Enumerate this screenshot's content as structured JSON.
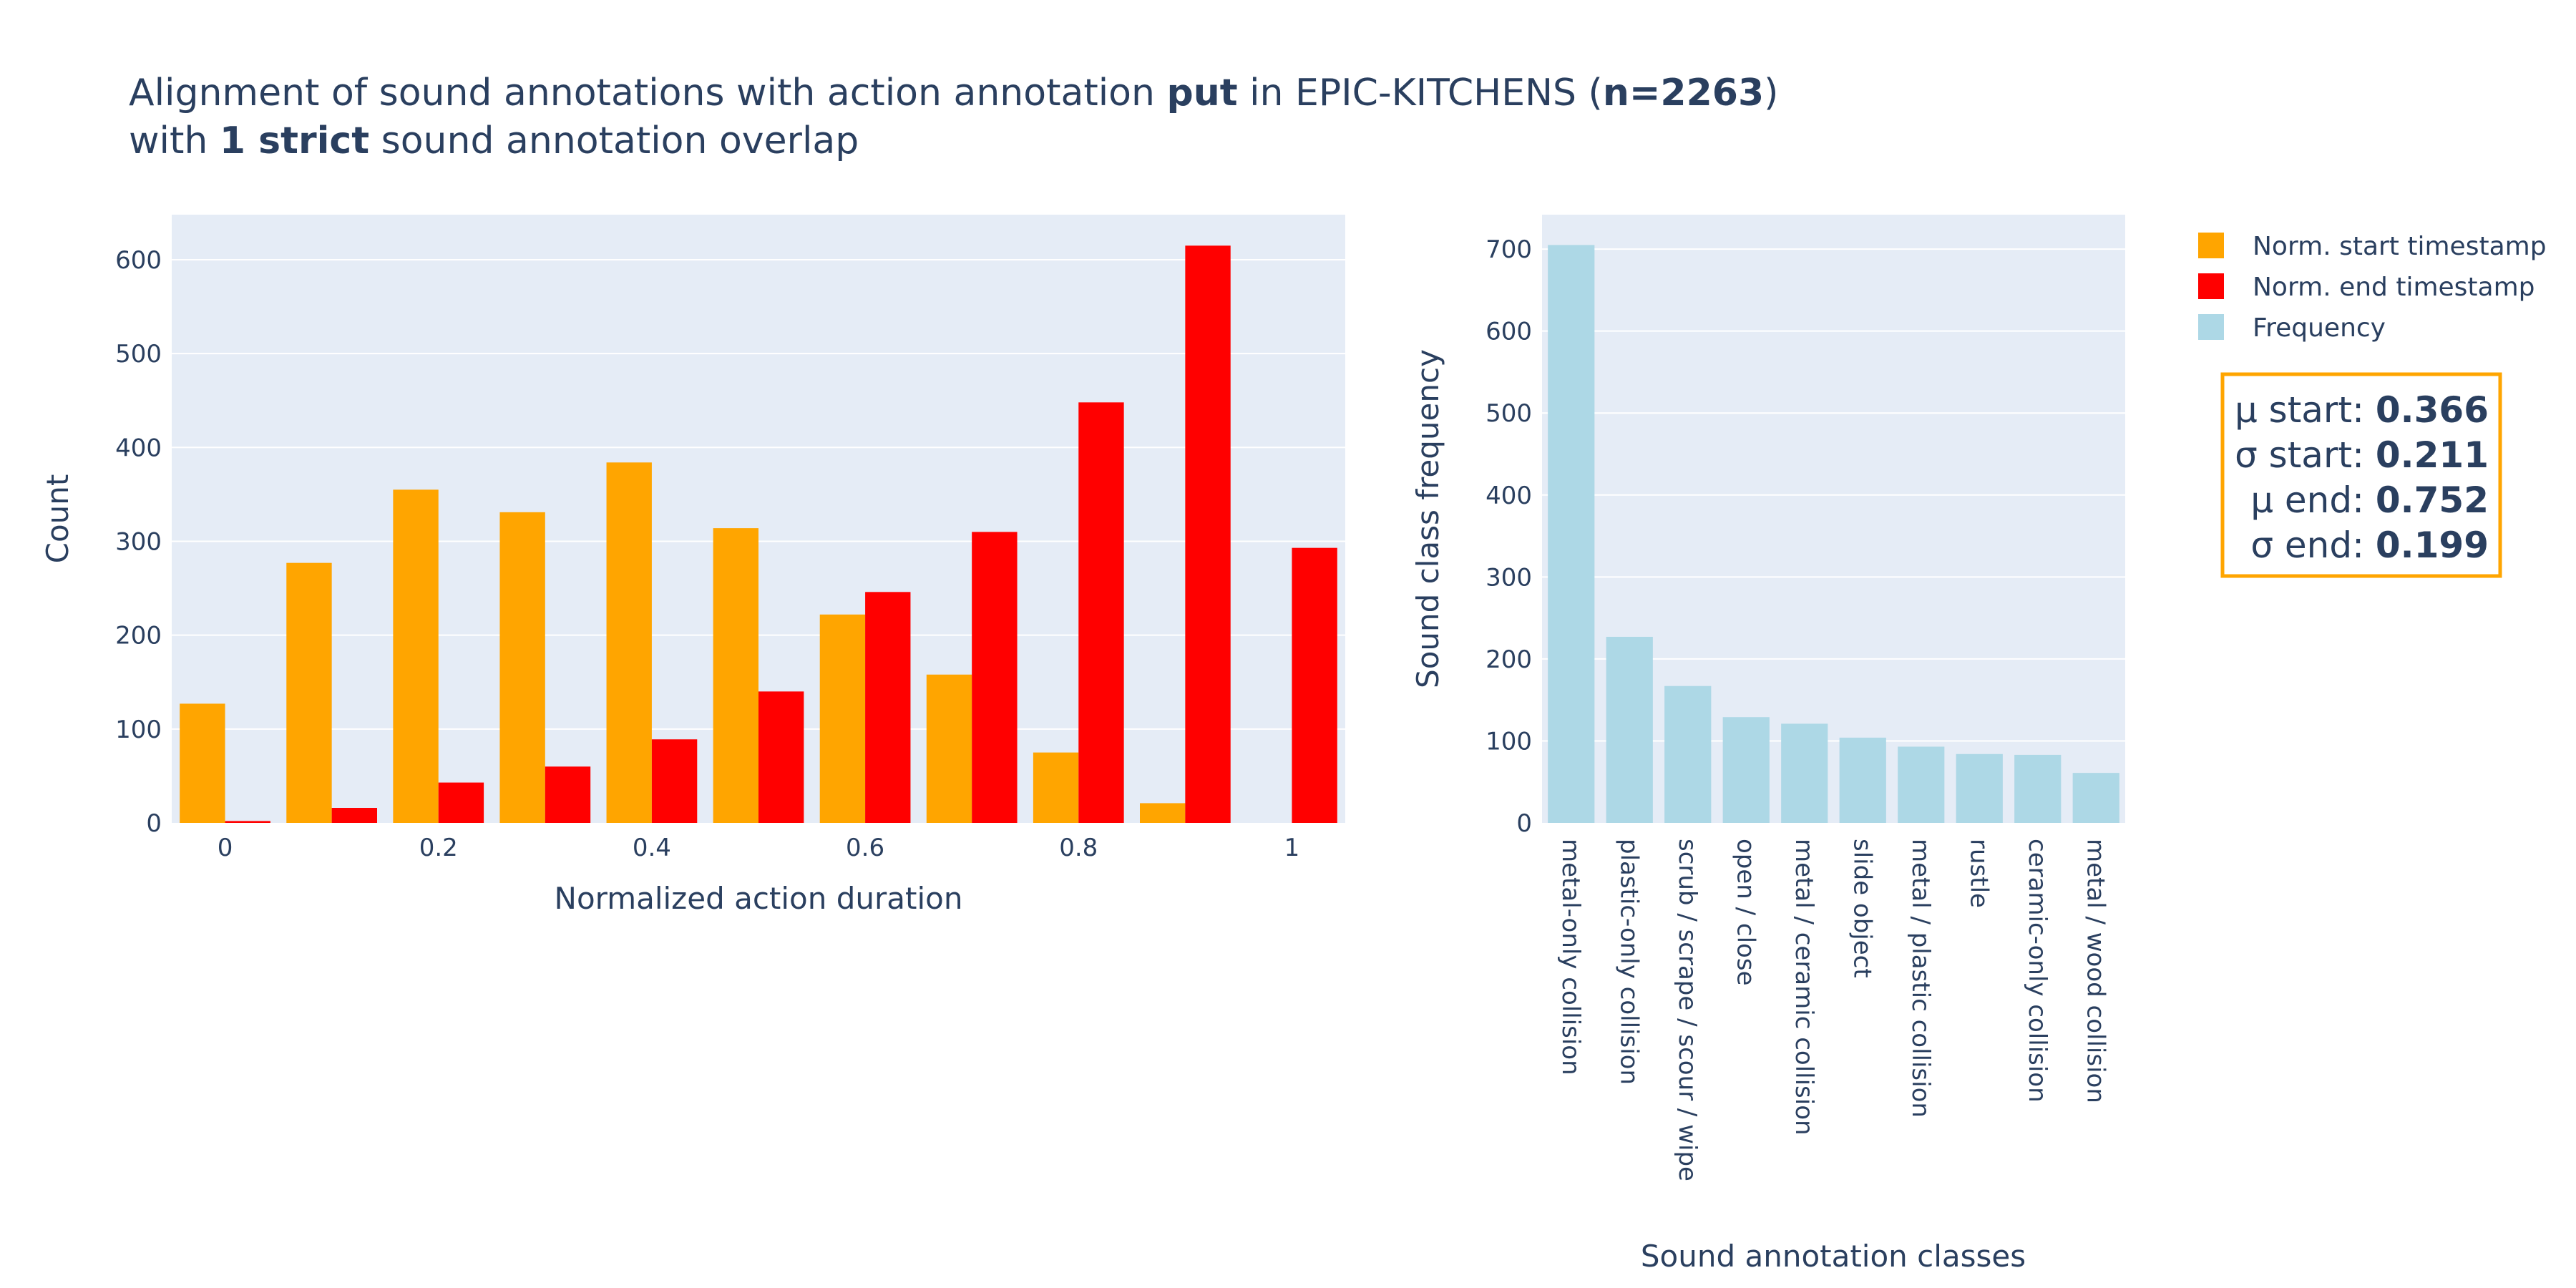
{
  "title": {
    "line1_pre": "Alignment of sound annotations with action annotation ",
    "line1_bold1": "put",
    "line1_mid": " in EPIC-KITCHENS (",
    "line1_bold2": "n=2263",
    "line1_post": ")",
    "line2_pre": "with ",
    "line2_bold": "1 strict",
    "line2_post": " sound annotation overlap"
  },
  "stats": {
    "lines": [
      {
        "label": "μ start: ",
        "value": "0.366"
      },
      {
        "label": "σ start: ",
        "value": "0.211"
      },
      {
        "label": "μ end: ",
        "value": "0.752"
      },
      {
        "label": "σ end: ",
        "value": "0.199"
      }
    ],
    "border_color": "#FFA500"
  },
  "legend": [
    {
      "name": "Norm. start timestamp",
      "color": "#FFA500"
    },
    {
      "name": "Norm. end timestamp",
      "color": "#FF0000"
    },
    {
      "name": "Frequency",
      "color": "#ADD8E6"
    }
  ],
  "colors": {
    "plot_bg": "#E5ECF6",
    "grid": "#FFFFFF",
    "text": "#2a3f5f"
  },
  "chart_data": [
    {
      "type": "bar",
      "bin_width": 0.1,
      "bin_starts": [
        0,
        0.1,
        0.2,
        0.3,
        0.4,
        0.5,
        0.6,
        0.7,
        0.8,
        0.9,
        1.0
      ],
      "series": [
        {
          "name": "Norm. start timestamp",
          "color": "#FFA500",
          "values": [
            127,
            277,
            355,
            331,
            384,
            314,
            222,
            158,
            75,
            21,
            0
          ]
        },
        {
          "name": "Norm. end timestamp",
          "color": "#FF0000",
          "values": [
            2,
            16,
            43,
            60,
            89,
            140,
            246,
            310,
            448,
            615,
            293
          ]
        }
      ],
      "xlabel": "Normalized action duration",
      "ylabel": "Count",
      "xlim": [
        -0.05,
        1.05
      ],
      "ylim": [
        0,
        648
      ],
      "xticks": [
        0,
        0.2,
        0.4,
        0.6,
        0.8,
        1
      ],
      "xtick_labels": [
        "0",
        "0.2",
        "0.4",
        "0.6",
        "0.8",
        "1"
      ],
      "yticks": [
        0,
        100,
        200,
        300,
        400,
        500,
        600
      ],
      "grid": true
    },
    {
      "type": "bar",
      "categories": [
        "metal-only collision",
        "plastic-only collision",
        "scrub / scrape / scour / wipe",
        "open / close",
        "metal / ceramic collision",
        "slide object",
        "metal / plastic collision",
        "rustle",
        "ceramic-only collision",
        "metal / wood collision"
      ],
      "series": [
        {
          "name": "Frequency",
          "color": "#ADD8E6",
          "values": [
            705,
            227,
            167,
            129,
            121,
            104,
            93,
            84,
            83,
            61
          ]
        }
      ],
      "xlabel": "Sound annotation classes",
      "ylabel": "Sound class frequency",
      "ylim": [
        0,
        742
      ],
      "yticks": [
        0,
        100,
        200,
        300,
        400,
        500,
        600,
        700
      ],
      "grid": true
    }
  ]
}
